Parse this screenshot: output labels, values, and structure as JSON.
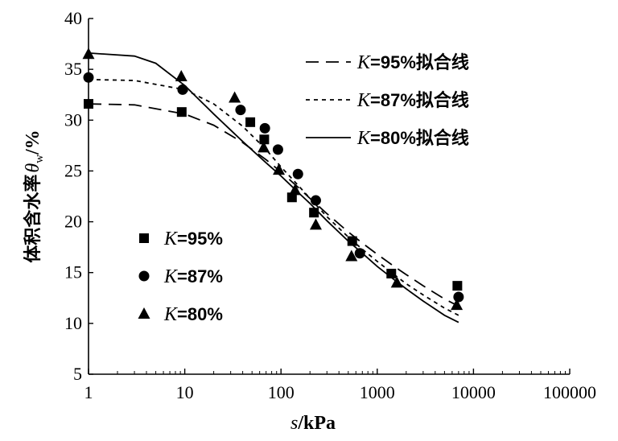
{
  "chart_data": {
    "type": "scatter",
    "x_scale": "log",
    "xlim": [
      1,
      100000
    ],
    "ylim": [
      5,
      40
    ],
    "x_ticks": [
      "1",
      "10",
      "100",
      "1000",
      "10000",
      "100000"
    ],
    "x_tick_values": [
      1,
      10,
      100,
      1000,
      10000,
      100000
    ],
    "y_ticks": [
      "5",
      "10",
      "15",
      "20",
      "25",
      "30",
      "35",
      "40"
    ],
    "y_tick_values": [
      5,
      10,
      15,
      20,
      25,
      30,
      35,
      40
    ],
    "xlabel": {
      "var": "s",
      "rest": "/kPa"
    },
    "ylabel": {
      "prefix": "体积含水率",
      "var": "θ",
      "sub": "w",
      "suffix": "/%"
    },
    "series": [
      {
        "name": "K=95%",
        "label_var": "K",
        "label_rest": "=95%",
        "marker": "square",
        "x": [
          1,
          9.3,
          48,
          67,
          130,
          220,
          550,
          1400,
          6800
        ],
        "y": [
          31.6,
          30.8,
          29.8,
          28.1,
          22.4,
          20.9,
          18.1,
          14.9,
          13.7
        ]
      },
      {
        "name": "K=87%",
        "label_var": "K",
        "label_rest": "=87%",
        "marker": "circle",
        "x": [
          1,
          9.5,
          38,
          68,
          93,
          150,
          230,
          660,
          7000
        ],
        "y": [
          34.2,
          33.0,
          31.0,
          29.2,
          27.1,
          24.7,
          22.1,
          16.9,
          12.6
        ]
      },
      {
        "name": "K=80%",
        "label_var": "K",
        "label_rest": "=80%",
        "marker": "triangle",
        "x": [
          1,
          9.2,
          33,
          66,
          95,
          140,
          230,
          540,
          1600,
          6700
        ],
        "y": [
          36.5,
          34.3,
          32.2,
          27.3,
          25.1,
          23.1,
          19.7,
          16.6,
          14.0,
          11.8
        ]
      }
    ],
    "fit_lines": [
      {
        "name": "K=95%拟合线",
        "label_var": "K",
        "label_rest": "=95%拟合线",
        "style": "dashed",
        "x": [
          1,
          3,
          10,
          20,
          40,
          70,
          100,
          150,
          200,
          300,
          500,
          700,
          1000,
          1500,
          2000,
          3000,
          5000,
          7000
        ],
        "y": [
          31.6,
          31.5,
          30.6,
          29.5,
          27.8,
          26.1,
          24.9,
          23.4,
          22.3,
          20.8,
          19.0,
          17.9,
          16.8,
          15.6,
          14.8,
          13.7,
          12.4,
          11.7
        ]
      },
      {
        "name": "K=87%拟合线",
        "label_var": "K",
        "label_rest": "=87%拟合线",
        "style": "dotted",
        "x": [
          1,
          3,
          10,
          20,
          40,
          70,
          100,
          150,
          200,
          300,
          500,
          700,
          1000,
          1500,
          2000,
          3000,
          5000,
          7000
        ],
        "y": [
          34.0,
          33.9,
          33.0,
          31.6,
          29.4,
          27.1,
          25.4,
          23.6,
          22.3,
          20.5,
          18.5,
          17.3,
          16.1,
          14.8,
          13.9,
          12.8,
          11.5,
          10.8
        ]
      },
      {
        "name": "K=80%拟合线",
        "label_var": "K",
        "label_rest": "=80%拟合线",
        "style": "solid",
        "x": [
          1,
          3,
          5,
          10,
          20,
          40,
          70,
          100,
          150,
          200,
          300,
          500,
          700,
          1000,
          1500,
          2000,
          3000,
          5000,
          7000
        ],
        "y": [
          36.6,
          36.3,
          35.6,
          33.4,
          30.6,
          27.9,
          25.8,
          24.5,
          22.9,
          21.8,
          20.1,
          18.1,
          16.9,
          15.6,
          14.3,
          13.4,
          12.2,
          10.8,
          10.1
        ]
      }
    ]
  }
}
